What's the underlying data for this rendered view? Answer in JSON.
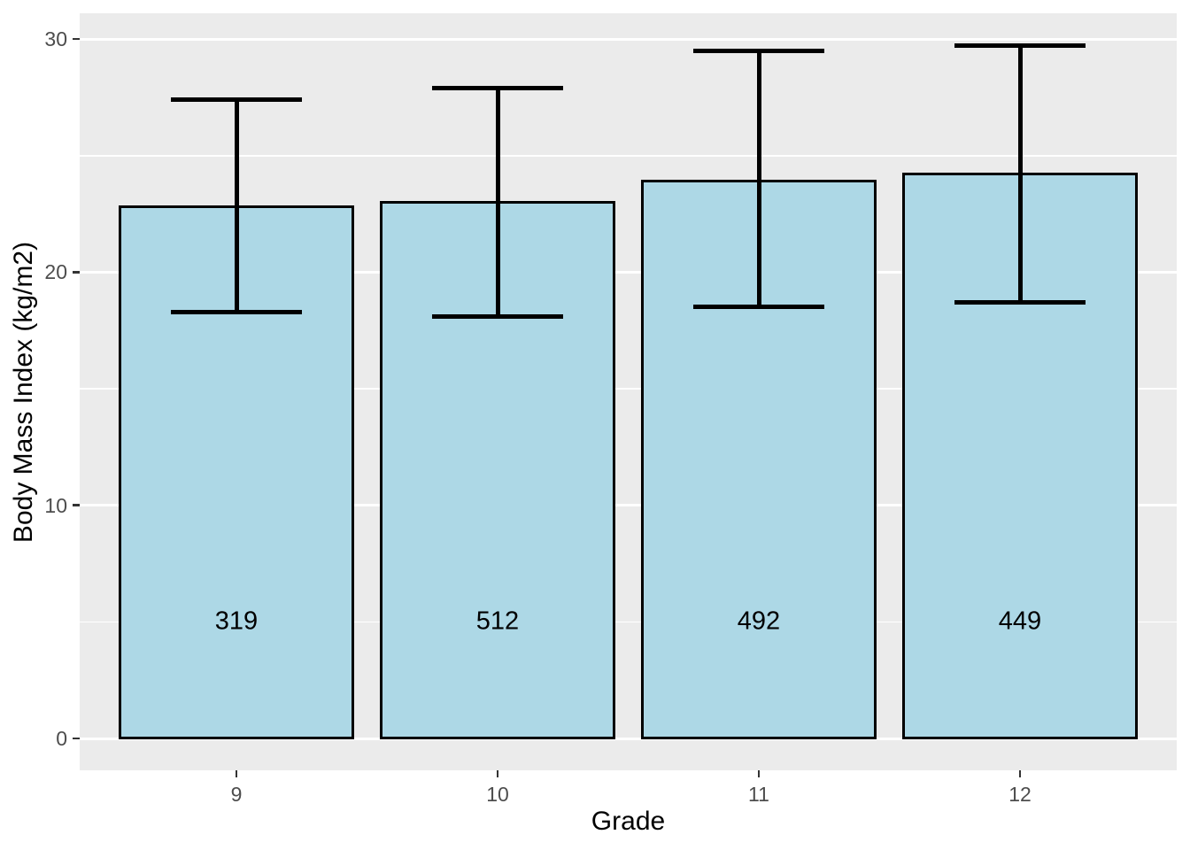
{
  "chart_data": {
    "type": "bar",
    "title": "",
    "xlabel": "Grade",
    "ylabel": "Body Mass Index (kg/m2)",
    "categories": [
      "9",
      "10",
      "11",
      "12"
    ],
    "values": [
      22.8,
      23.0,
      23.9,
      24.2
    ],
    "error_upper": [
      27.4,
      27.9,
      29.5,
      29.7
    ],
    "error_lower": [
      18.3,
      18.1,
      18.5,
      18.7
    ],
    "bar_labels": [
      "319",
      "512",
      "492",
      "449"
    ],
    "bar_label_y": 5,
    "y_ticks": [
      0,
      10,
      20,
      30
    ],
    "y_minor_ticks": [
      5,
      15,
      25
    ],
    "ylim": [
      -1.4,
      31.1
    ],
    "bar_width": 0.9,
    "errorbar_cap_width": 0.5,
    "grid": "major+minor horizontal, white on grey panel",
    "legend": "none",
    "colors": {
      "bar_fill": "#ADD8E6",
      "bar_border": "#000000",
      "error_bar": "#000000",
      "panel_background": "#EBEBEB",
      "gridline": "#FFFFFF",
      "tick_label": "#4D4D4D",
      "tick_mark": "#333333",
      "axis_title": "#000000",
      "bar_label_color": "#000000",
      "figure_background": "#FFFFFF"
    }
  }
}
